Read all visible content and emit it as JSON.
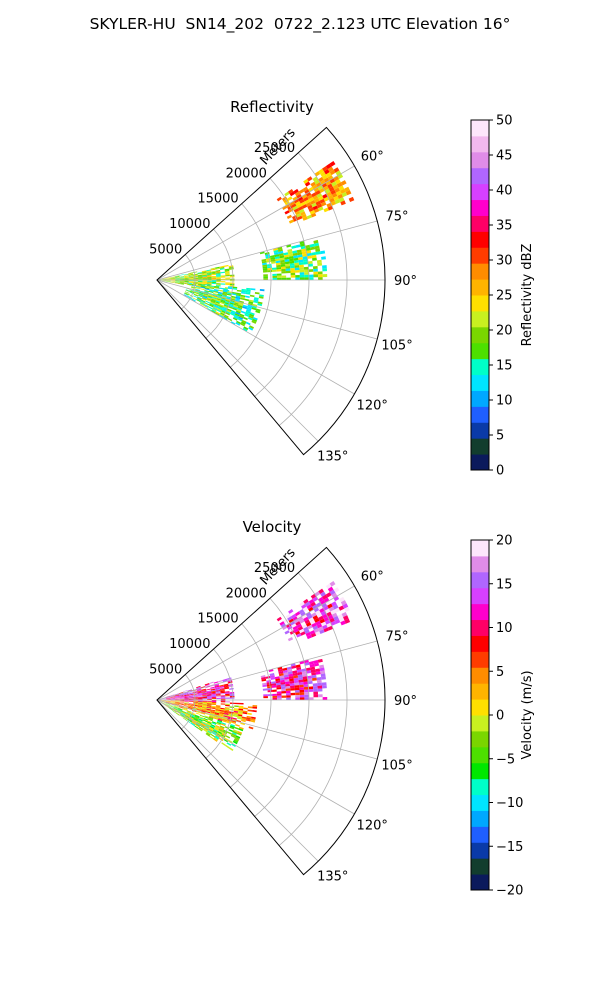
{
  "figure": {
    "suptitle": "SKYLER-HU  SN14_202  0722_2.123 UTC Elevation 16°"
  },
  "chart_data": [
    {
      "type": "heatmap",
      "subtype": "polar-sector-radar",
      "title": "Reflectivity",
      "radial_axis_label": "Meters",
      "radial_ticks": [
        5000,
        10000,
        15000,
        20000,
        25000
      ],
      "radial_tick_labels": [
        "5000",
        "10000",
        "15000",
        "20000",
        "25000"
      ],
      "rlim": [
        0,
        30000
      ],
      "theta_range_deg": [
        48,
        140
      ],
      "theta_ticks_deg": [
        60,
        75,
        90,
        105,
        120,
        135
      ],
      "theta_tick_labels": [
        "60°",
        "75°",
        "90°",
        "105°",
        "120°",
        "135°"
      ],
      "grid": true,
      "colorbar": {
        "label": "Reflectivity dBZ",
        "range": [
          0,
          50
        ],
        "ticks": [
          0,
          5,
          10,
          15,
          20,
          25,
          30,
          35,
          40,
          45,
          50
        ],
        "tick_labels": [
          "0",
          "5",
          "10",
          "15",
          "20",
          "25",
          "30",
          "35",
          "40",
          "45",
          "50"
        ],
        "colors": [
          "#0b1a5c",
          "#123d2e",
          "#0a3aa8",
          "#1f5fff",
          "#00a8ff",
          "#00e5ff",
          "#00ffc8",
          "#4de000",
          "#7ad600",
          "#c8f020",
          "#ffe000",
          "#ffb400",
          "#ff8c00",
          "#ff3c00",
          "#ff0000",
          "#ff0066",
          "#ff00cc",
          "#d640ff",
          "#b066ff",
          "#e08ce8",
          "#f2b8ee",
          "#fde6fb"
        ]
      },
      "echo_regions": [
        {
          "theta_deg": [
            56,
            68
          ],
          "range_m": [
            19000,
            28000
          ],
          "value_dbz": 27
        },
        {
          "theta_deg": [
            75,
            90
          ],
          "range_m": [
            14000,
            22000
          ],
          "value_dbz": 18
        },
        {
          "theta_deg": [
            78,
            100
          ],
          "range_m": [
            0,
            10000
          ],
          "value_dbz": 20
        },
        {
          "theta_deg": [
            95,
            120
          ],
          "range_m": [
            4000,
            14000
          ],
          "value_dbz": 17
        }
      ]
    },
    {
      "type": "heatmap",
      "subtype": "polar-sector-radar",
      "title": "Velocity",
      "radial_axis_label": "Meters",
      "radial_ticks": [
        5000,
        10000,
        15000,
        20000,
        25000
      ],
      "radial_tick_labels": [
        "5000",
        "10000",
        "15000",
        "20000",
        "25000"
      ],
      "rlim": [
        0,
        30000
      ],
      "theta_range_deg": [
        48,
        140
      ],
      "theta_ticks_deg": [
        60,
        75,
        90,
        105,
        120,
        135
      ],
      "theta_tick_labels": [
        "60°",
        "75°",
        "90°",
        "105°",
        "120°",
        "135°"
      ],
      "grid": true,
      "colorbar": {
        "label": "Velocity (m/s)",
        "range": [
          -20,
          20
        ],
        "ticks": [
          -20,
          -15,
          -10,
          -5,
          0,
          5,
          10,
          15,
          20
        ],
        "tick_labels": [
          "−20",
          "−15",
          "−10",
          "−5",
          "0",
          "5",
          "10",
          "15",
          "20"
        ],
        "colors": [
          "#0b1a5c",
          "#123d2e",
          "#0a3aa8",
          "#1f5fff",
          "#00a8ff",
          "#00e5ff",
          "#00ffc8",
          "#00e800",
          "#4de000",
          "#7ad600",
          "#c8f020",
          "#ffe000",
          "#ffb400",
          "#ff8c00",
          "#ff3c00",
          "#ff0000",
          "#ff0066",
          "#ff00cc",
          "#d640ff",
          "#b066ff",
          "#e08ce8",
          "#fde6fb"
        ]
      },
      "echo_regions": [
        {
          "theta_deg": [
            56,
            68
          ],
          "range_m": [
            19000,
            28000
          ],
          "value_ms": 14
        },
        {
          "theta_deg": [
            75,
            90
          ],
          "range_m": [
            14000,
            22000
          ],
          "value_ms": 12
        },
        {
          "theta_deg": [
            72,
            92
          ],
          "range_m": [
            0,
            10000
          ],
          "value_ms": 12
        },
        {
          "theta_deg": [
            92,
            108
          ],
          "range_m": [
            0,
            13000
          ],
          "value_ms": 4
        },
        {
          "theta_deg": [
            108,
            125
          ],
          "range_m": [
            0,
            12000
          ],
          "value_ms": -3
        }
      ]
    }
  ]
}
